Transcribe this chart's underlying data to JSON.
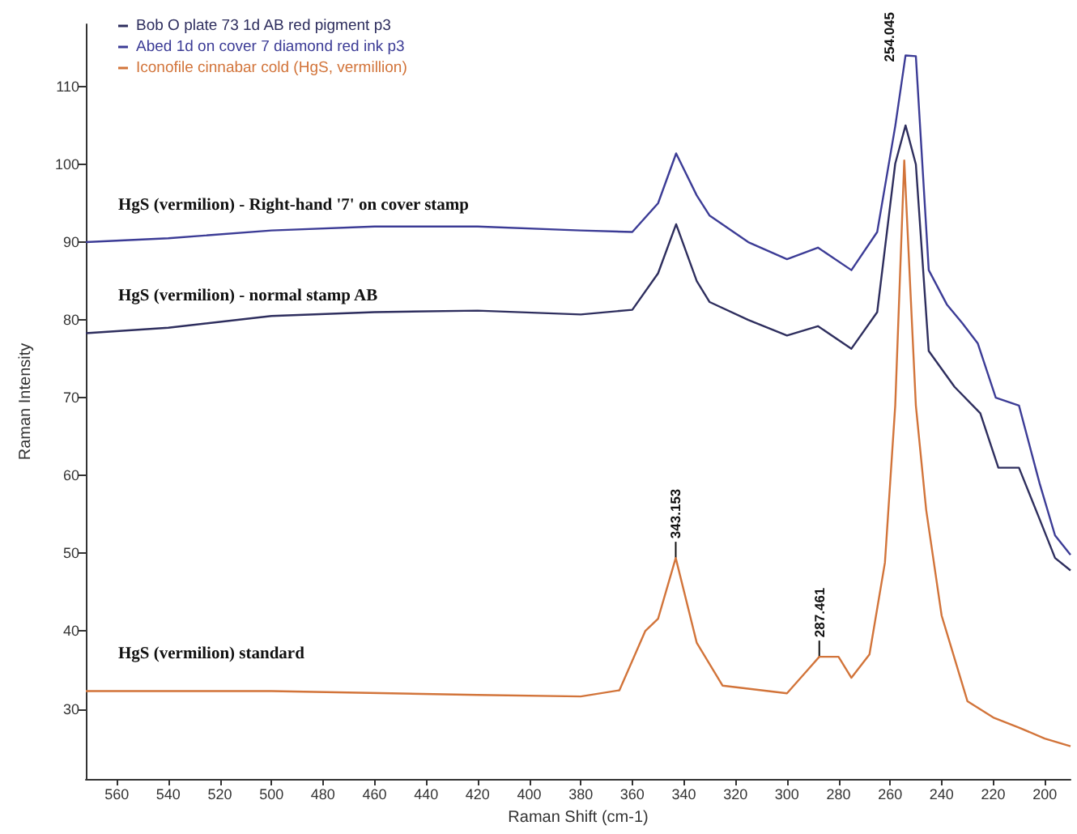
{
  "chart_data": {
    "type": "line",
    "xlabel": "Raman Shift (cm-1)",
    "ylabel": "Raman Intensity",
    "xlim": [
      572,
      190
    ],
    "ylim": [
      21,
      118
    ],
    "xticks": [
      560,
      540,
      520,
      500,
      480,
      460,
      440,
      420,
      400,
      380,
      360,
      340,
      320,
      300,
      280,
      260,
      240,
      220,
      200
    ],
    "yticks": [
      30,
      40,
      50,
      60,
      70,
      80,
      90,
      100,
      110
    ],
    "legend": "top left",
    "marker": "none",
    "series": [
      {
        "name": "Bob O plate 73 1d AB red pigment p3",
        "color": "#2e2e5e",
        "x": [
          572,
          540,
          500,
          460,
          420,
          380,
          360,
          350,
          343,
          335,
          330,
          315,
          300,
          288,
          275,
          265,
          258,
          254,
          250,
          245,
          235,
          225,
          218,
          210,
          202,
          196,
          190
        ],
        "values": [
          78.3,
          79,
          80.5,
          81,
          81.2,
          80.7,
          81.3,
          86,
          92.3,
          85,
          82.3,
          80,
          78,
          79.2,
          76.3,
          81,
          100.1,
          105,
          100,
          76,
          71.4,
          68,
          61,
          61,
          54.4,
          49.4,
          47.8
        ]
      },
      {
        "name": "Abed 1d on cover 7 diamond red ink p3",
        "color": "#3c3c96",
        "x": [
          572,
          540,
          500,
          460,
          420,
          380,
          360,
          350,
          343,
          335,
          330,
          315,
          300,
          288,
          275,
          265,
          258,
          254,
          250,
          245,
          238,
          232,
          226,
          219,
          210,
          202,
          196,
          190
        ],
        "values": [
          90,
          90.5,
          91.5,
          92,
          92,
          91.5,
          91.3,
          95,
          101.4,
          96,
          93.4,
          90,
          87.8,
          89.3,
          86.4,
          91.3,
          104.9,
          114,
          113.9,
          86.4,
          82,
          79.6,
          77,
          70,
          69,
          59,
          52.3,
          49.8
        ]
      },
      {
        "name": "Iconofile cinnabar cold (HgS, vermillion)",
        "color": "#d2743a",
        "x": [
          572,
          500,
          420,
          380,
          365,
          355,
          350,
          343.153,
          335,
          325,
          300,
          292,
          287.461,
          280,
          275,
          268,
          262,
          258,
          254.5,
          250,
          246,
          240,
          230,
          220,
          210,
          200,
          190
        ],
        "values": [
          32.3,
          32.3,
          31.8,
          31.6,
          32.4,
          40,
          41.6,
          49.4,
          38.5,
          33,
          32,
          35,
          36.7,
          36.7,
          34,
          37,
          48.8,
          69,
          100.5,
          69,
          55.6,
          42,
          31,
          28.9,
          27.6,
          26.2,
          25.2
        ]
      }
    ],
    "annotations": [
      "HgS (vermilion) - normal stamp AB",
      "HgS (vermilion) - Right-hand '7' on cover stamp",
      "HgS (vermilion) standard",
      {
        "text": "343.153",
        "x": 343.153,
        "y": 49.4
      },
      {
        "text": "287.461",
        "x": 287.461,
        "y": 36.7
      },
      {
        "text": "254.045",
        "x": 254.045,
        "y": 114
      }
    ]
  }
}
